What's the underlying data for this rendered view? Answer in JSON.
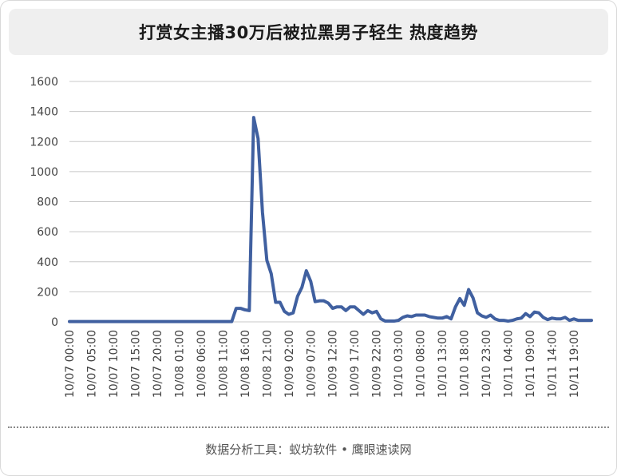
{
  "footer": "数据分析工具：蚁坊软件 • 鹰眼速读网",
  "colors": {
    "line": "#4060a0",
    "grid": "#c8c8c8",
    "axis_text": "#444444"
  },
  "chart_data": {
    "type": "line",
    "title": "打赏女主播30万后被拉黑男子轻生 热度趋势",
    "xlabel": "",
    "ylabel": "",
    "ylim": [
      0,
      1600
    ],
    "yticks": [
      0,
      200,
      400,
      600,
      800,
      1000,
      1200,
      1400,
      1600
    ],
    "grid": true,
    "x_tick_labels": [
      "10/07 00:00",
      "10/07 05:00",
      "10/07 10:00",
      "10/07 15:00",
      "10/07 20:00",
      "10/08 01:00",
      "10/08 06:00",
      "10/08 11:00",
      "10/08 16:00",
      "10/08 21:00",
      "10/09 02:00",
      "10/09 07:00",
      "10/09 12:00",
      "10/09 17:00",
      "10/09 22:00",
      "10/10 03:00",
      "10/10 08:00",
      "10/10 13:00",
      "10/10 18:00",
      "10/10 23:00",
      "10/11 04:00",
      "10/11 09:00",
      "10/11 14:00",
      "10/11 19:00"
    ],
    "x_tick_index": [
      0,
      5,
      10,
      15,
      20,
      25,
      30,
      35,
      40,
      45,
      50,
      55,
      60,
      65,
      70,
      75,
      80,
      85,
      90,
      95,
      100,
      105,
      110,
      115
    ],
    "x_count": 120,
    "series": [
      {
        "values": [
          2,
          2,
          2,
          2,
          2,
          2,
          2,
          2,
          2,
          2,
          2,
          2,
          2,
          2,
          2,
          2,
          2,
          2,
          2,
          2,
          2,
          2,
          2,
          2,
          2,
          2,
          2,
          2,
          2,
          2,
          2,
          2,
          2,
          2,
          2,
          2,
          2,
          2,
          90,
          90,
          80,
          75,
          1360,
          1220,
          730,
          410,
          320,
          130,
          130,
          70,
          50,
          60,
          170,
          230,
          340,
          270,
          135,
          140,
          140,
          125,
          90,
          100,
          100,
          75,
          100,
          100,
          75,
          50,
          75,
          60,
          70,
          20,
          5,
          5,
          5,
          10,
          30,
          40,
          35,
          45,
          45,
          45,
          35,
          30,
          25,
          25,
          35,
          20,
          100,
          155,
          110,
          215,
          160,
          60,
          40,
          30,
          45,
          20,
          10,
          10,
          5,
          10,
          20,
          25,
          55,
          35,
          65,
          60,
          30,
          15,
          25,
          20,
          20,
          30,
          10,
          20,
          10,
          10,
          10,
          10
        ]
      }
    ]
  }
}
